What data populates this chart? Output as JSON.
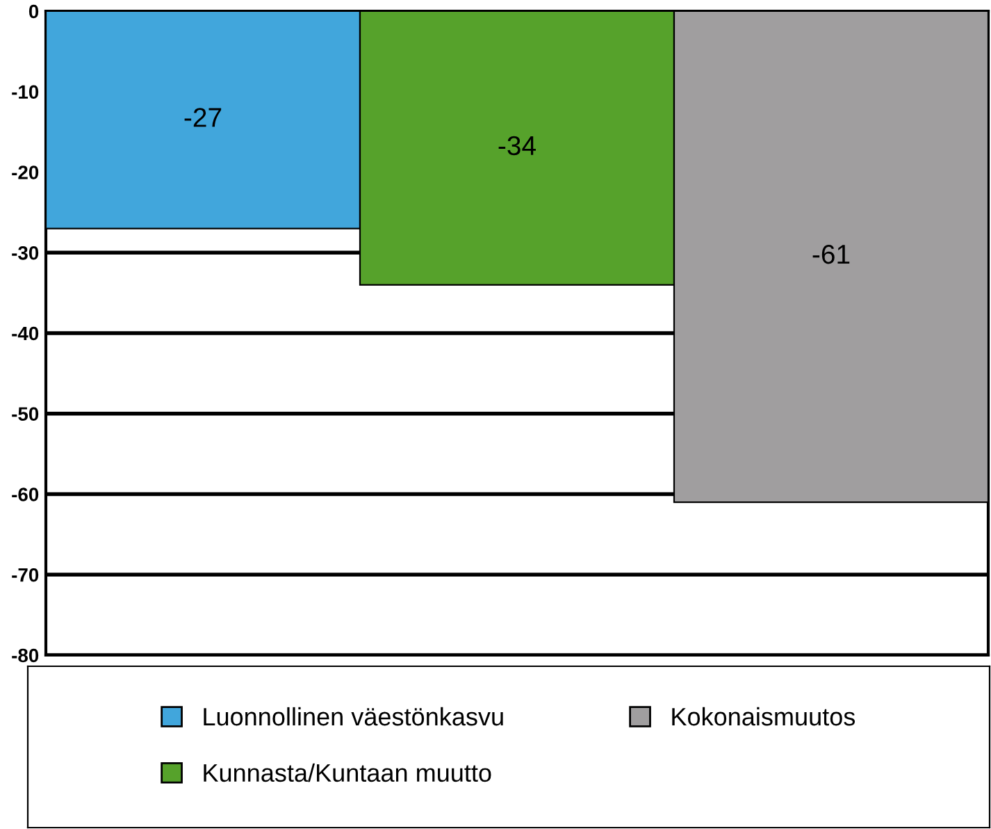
{
  "chart_data": {
    "type": "bar",
    "categories": [
      null,
      null,
      null
    ],
    "series": [
      {
        "name": "Luonnollinen väestönkasvu",
        "color": "#41a6dc",
        "values": [
          -27,
          null,
          null
        ]
      },
      {
        "name": "Kunnasta/Kuntaan muutto",
        "color": "#56a22b",
        "values": [
          null,
          -34,
          null
        ]
      },
      {
        "name": "Kokonaismuutos",
        "color": "#a09e9f",
        "values": [
          null,
          null,
          -61
        ]
      }
    ],
    "ylim": [
      -80,
      0
    ],
    "yticks": [
      0,
      -10,
      -20,
      -30,
      -40,
      -50,
      -60,
      -70,
      -80
    ],
    "grid": "y",
    "data_labels": true,
    "legend": "bottom"
  }
}
